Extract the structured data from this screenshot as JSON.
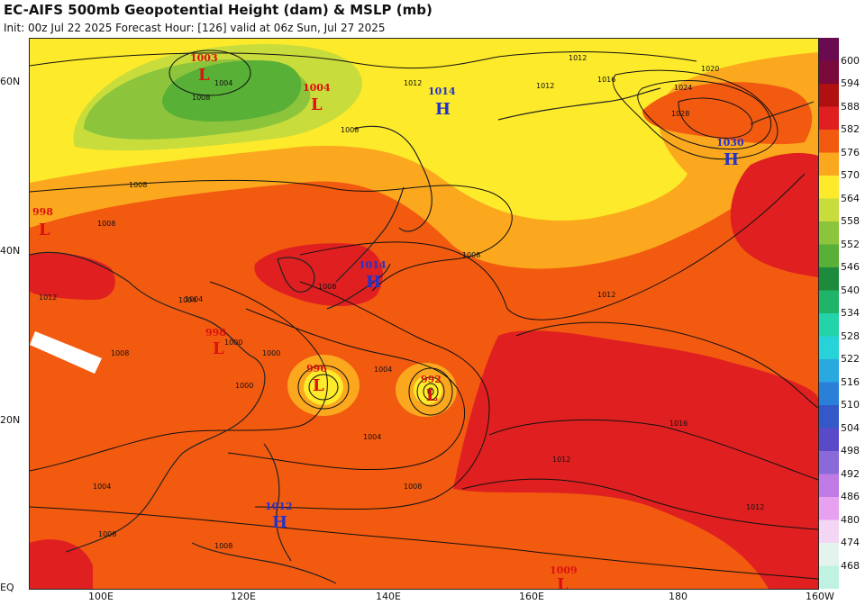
{
  "header": {
    "title": "EC-AIFS 500mb Geopotential Height (dam) & MSLP (mb)",
    "subtitle": "Init: 00z Jul 22 2025   Forecast Hour: [126]   valid at 06z Sun, Jul 27 2025"
  },
  "axes": {
    "lat_labels": [
      "60N",
      "40N",
      "20N",
      "EQ"
    ],
    "lon_labels": [
      "100E",
      "120E",
      "140E",
      "160E",
      "180",
      "160W"
    ]
  },
  "colorbar": {
    "levels": [
      "600",
      "594",
      "588",
      "582",
      "576",
      "570",
      "564",
      "558",
      "552",
      "546",
      "540",
      "534",
      "528",
      "522",
      "516",
      "510",
      "504",
      "498",
      "492",
      "486",
      "480",
      "474",
      "468"
    ],
    "colors": [
      "#7a0a3c",
      "#b01010",
      "#e02020",
      "#f25a10",
      "#fba81e",
      "#fdea2a",
      "#c8dc3c",
      "#8cc43c",
      "#58b037",
      "#1e8a3c",
      "#1fb467",
      "#22d4a8",
      "#27d2d8",
      "#2aa8e0",
      "#2a80d8",
      "#3458c8",
      "#5a4ac8",
      "#8a6ad8",
      "#c07ae6",
      "#e8a0f0",
      "#f2d6f4",
      "#e4f4ec",
      "#bff2e0"
    ]
  },
  "pressure_centers": [
    {
      "type": "L",
      "value": "1003"
    },
    {
      "type": "L",
      "value": "1004"
    },
    {
      "type": "H",
      "value": "1014"
    },
    {
      "type": "H",
      "value": "1030"
    },
    {
      "type": "L",
      "value": "998"
    },
    {
      "type": "H",
      "value": "1014"
    },
    {
      "type": "L",
      "value": "998"
    },
    {
      "type": "L",
      "value": "996"
    },
    {
      "type": "L",
      "value": "992"
    },
    {
      "type": "H",
      "value": "1012"
    },
    {
      "type": "L",
      "value": "1009"
    }
  ],
  "isobar_labels": [
    "1008",
    "1004",
    "1012",
    "1008",
    "1012",
    "1016",
    "1020",
    "1024",
    "1028",
    "1008",
    "1008",
    "1008",
    "1012",
    "1008",
    "1004",
    "1000",
    "1000",
    "1000",
    "1004",
    "1004",
    "1004",
    "1008",
    "1012",
    "1016",
    "1012",
    "1012",
    "1008",
    "1008",
    "1008",
    "1004",
    "1012"
  ]
}
